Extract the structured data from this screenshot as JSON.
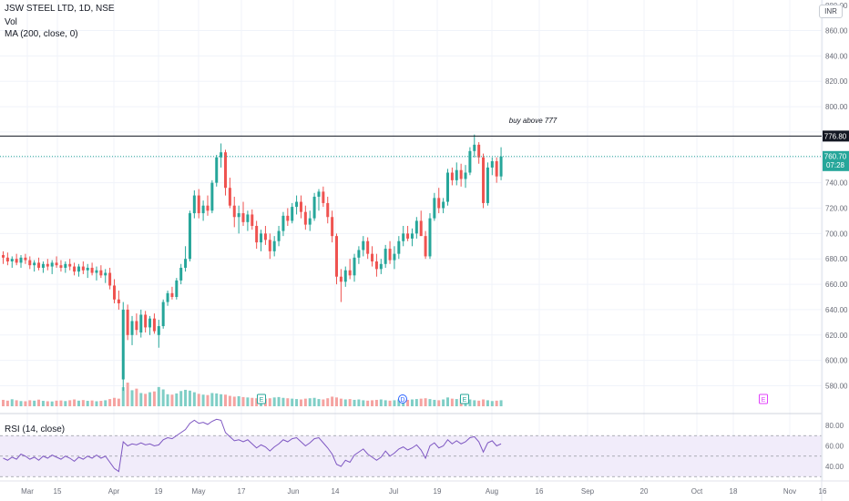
{
  "legend": {
    "title": "JSW STEEL LTD, 1D, NSE",
    "volume": "Vol",
    "ma": "MA (200, close, 0)",
    "rsi": "RSI (14, close)",
    "currency": "INR"
  },
  "annotation": {
    "text": "buy above 777",
    "level": 776.8,
    "level_label": "776.80"
  },
  "last_price": {
    "price": 760.7,
    "price_label": "760.70",
    "countdown": "07:28"
  },
  "colors": {
    "up": "#26a69a",
    "down": "#ef5350",
    "vol_up": "#7fcec6",
    "vol_down": "#f5a3a1",
    "rsi_line": "#7e57c2",
    "rsi_band": "#f1ecfa",
    "level_line": "#131722",
    "axis_text": "#6a6d78"
  },
  "events": [
    {
      "label": "E",
      "date": "May 13",
      "kind": "earnings"
    },
    {
      "label": "D",
      "date": "Jul 4",
      "kind": "dividend"
    },
    {
      "label": "E",
      "date": "Jul 25",
      "kind": "earnings"
    },
    {
      "label": "E",
      "date": "Oct 24",
      "kind": "earnings"
    }
  ],
  "chart_data": {
    "type": "candlestick",
    "price_axis": {
      "range": [
        566,
        880
      ],
      "ticks": [
        580,
        600,
        620,
        640,
        660,
        680,
        700,
        720,
        740,
        760,
        780,
        800,
        820,
        840,
        860
      ],
      "top_partial_label": "880.00"
    },
    "rsi_axis": {
      "range": [
        30,
        90
      ],
      "ticks": [
        40,
        60,
        80
      ],
      "band": [
        30,
        70
      ]
    },
    "x_axis": {
      "labels": [
        "Mar",
        "15",
        "Apr",
        "19",
        "May",
        "17",
        "Jun",
        "14",
        "Jul",
        "19",
        "Aug",
        "16",
        "Sep",
        "20",
        "Oct",
        "18",
        "Nov",
        "16"
      ]
    },
    "candles": [
      {
        "o": 683,
        "h": 686,
        "l": 676,
        "c": 681
      },
      {
        "o": 681,
        "h": 685,
        "l": 675,
        "c": 678
      },
      {
        "o": 678,
        "h": 682,
        "l": 673,
        "c": 680
      },
      {
        "o": 680,
        "h": 684,
        "l": 675,
        "c": 677
      },
      {
        "o": 677,
        "h": 683,
        "l": 673,
        "c": 681
      },
      {
        "o": 681,
        "h": 684,
        "l": 676,
        "c": 679
      },
      {
        "o": 679,
        "h": 682,
        "l": 672,
        "c": 675
      },
      {
        "o": 675,
        "h": 679,
        "l": 670,
        "c": 677
      },
      {
        "o": 677,
        "h": 681,
        "l": 671,
        "c": 673
      },
      {
        "o": 673,
        "h": 678,
        "l": 669,
        "c": 676
      },
      {
        "o": 676,
        "h": 680,
        "l": 671,
        "c": 674
      },
      {
        "o": 674,
        "h": 679,
        "l": 668,
        "c": 677
      },
      {
        "o": 677,
        "h": 682,
        "l": 673,
        "c": 675
      },
      {
        "o": 675,
        "h": 679,
        "l": 670,
        "c": 673
      },
      {
        "o": 673,
        "h": 678,
        "l": 669,
        "c": 676
      },
      {
        "o": 676,
        "h": 680,
        "l": 671,
        "c": 674
      },
      {
        "o": 674,
        "h": 677,
        "l": 667,
        "c": 670
      },
      {
        "o": 670,
        "h": 676,
        "l": 666,
        "c": 674
      },
      {
        "o": 674,
        "h": 678,
        "l": 668,
        "c": 671
      },
      {
        "o": 671,
        "h": 676,
        "l": 665,
        "c": 673
      },
      {
        "o": 673,
        "h": 677,
        "l": 667,
        "c": 669
      },
      {
        "o": 669,
        "h": 674,
        "l": 663,
        "c": 671
      },
      {
        "o": 671,
        "h": 675,
        "l": 665,
        "c": 667
      },
      {
        "o": 667,
        "h": 672,
        "l": 661,
        "c": 669
      },
      {
        "o": 669,
        "h": 673,
        "l": 656,
        "c": 659
      },
      {
        "o": 659,
        "h": 664,
        "l": 645,
        "c": 648
      },
      {
        "o": 648,
        "h": 655,
        "l": 640,
        "c": 645
      },
      {
        "o": 585,
        "h": 646,
        "l": 576,
        "c": 640
      },
      {
        "o": 640,
        "h": 644,
        "l": 616,
        "c": 620
      },
      {
        "o": 620,
        "h": 635,
        "l": 612,
        "c": 631
      },
      {
        "o": 631,
        "h": 637,
        "l": 620,
        "c": 624
      },
      {
        "o": 622,
        "h": 640,
        "l": 618,
        "c": 636
      },
      {
        "o": 636,
        "h": 639,
        "l": 622,
        "c": 626
      },
      {
        "o": 626,
        "h": 635,
        "l": 620,
        "c": 633
      },
      {
        "o": 633,
        "h": 637,
        "l": 621,
        "c": 623
      },
      {
        "o": 620,
        "h": 632,
        "l": 610,
        "c": 627
      },
      {
        "o": 627,
        "h": 648,
        "l": 625,
        "c": 646
      },
      {
        "o": 646,
        "h": 655,
        "l": 643,
        "c": 653
      },
      {
        "o": 653,
        "h": 658,
        "l": 648,
        "c": 650
      },
      {
        "o": 650,
        "h": 665,
        "l": 648,
        "c": 663
      },
      {
        "o": 663,
        "h": 676,
        "l": 660,
        "c": 673
      },
      {
        "o": 673,
        "h": 690,
        "l": 670,
        "c": 680
      },
      {
        "o": 680,
        "h": 718,
        "l": 678,
        "c": 716
      },
      {
        "o": 716,
        "h": 734,
        "l": 712,
        "c": 730
      },
      {
        "o": 730,
        "h": 735,
        "l": 712,
        "c": 716
      },
      {
        "o": 716,
        "h": 726,
        "l": 710,
        "c": 722
      },
      {
        "o": 722,
        "h": 730,
        "l": 714,
        "c": 718
      },
      {
        "o": 718,
        "h": 742,
        "l": 716,
        "c": 740
      },
      {
        "o": 740,
        "h": 762,
        "l": 737,
        "c": 760
      },
      {
        "o": 760,
        "h": 771,
        "l": 752,
        "c": 764
      },
      {
        "o": 764,
        "h": 766,
        "l": 730,
        "c": 736
      },
      {
        "o": 736,
        "h": 744,
        "l": 720,
        "c": 722
      },
      {
        "o": 722,
        "h": 729,
        "l": 705,
        "c": 713
      },
      {
        "o": 713,
        "h": 722,
        "l": 700,
        "c": 716
      },
      {
        "o": 716,
        "h": 725,
        "l": 706,
        "c": 709
      },
      {
        "o": 709,
        "h": 718,
        "l": 702,
        "c": 715
      },
      {
        "o": 715,
        "h": 719,
        "l": 703,
        "c": 706
      },
      {
        "o": 706,
        "h": 710,
        "l": 688,
        "c": 693
      },
      {
        "o": 693,
        "h": 703,
        "l": 686,
        "c": 700
      },
      {
        "o": 700,
        "h": 706,
        "l": 691,
        "c": 695
      },
      {
        "o": 695,
        "h": 700,
        "l": 680,
        "c": 686
      },
      {
        "o": 686,
        "h": 698,
        "l": 682,
        "c": 694
      },
      {
        "o": 694,
        "h": 706,
        "l": 690,
        "c": 702
      },
      {
        "o": 702,
        "h": 717,
        "l": 698,
        "c": 714
      },
      {
        "o": 714,
        "h": 720,
        "l": 706,
        "c": 710
      },
      {
        "o": 710,
        "h": 724,
        "l": 708,
        "c": 721
      },
      {
        "o": 721,
        "h": 730,
        "l": 715,
        "c": 725
      },
      {
        "o": 725,
        "h": 730,
        "l": 712,
        "c": 717
      },
      {
        "o": 717,
        "h": 722,
        "l": 703,
        "c": 707
      },
      {
        "o": 707,
        "h": 718,
        "l": 702,
        "c": 712
      },
      {
        "o": 712,
        "h": 732,
        "l": 710,
        "c": 729
      },
      {
        "o": 729,
        "h": 735,
        "l": 718,
        "c": 733
      },
      {
        "o": 733,
        "h": 737,
        "l": 721,
        "c": 724
      },
      {
        "o": 724,
        "h": 729,
        "l": 708,
        "c": 713
      },
      {
        "o": 713,
        "h": 718,
        "l": 693,
        "c": 698
      },
      {
        "o": 698,
        "h": 700,
        "l": 660,
        "c": 666
      },
      {
        "o": 666,
        "h": 672,
        "l": 646,
        "c": 662
      },
      {
        "o": 662,
        "h": 674,
        "l": 658,
        "c": 671
      },
      {
        "o": 671,
        "h": 680,
        "l": 664,
        "c": 667
      },
      {
        "o": 667,
        "h": 684,
        "l": 662,
        "c": 681
      },
      {
        "o": 681,
        "h": 690,
        "l": 676,
        "c": 687
      },
      {
        "o": 687,
        "h": 698,
        "l": 682,
        "c": 694
      },
      {
        "o": 694,
        "h": 697,
        "l": 680,
        "c": 684
      },
      {
        "o": 684,
        "h": 690,
        "l": 674,
        "c": 678
      },
      {
        "o": 678,
        "h": 684,
        "l": 666,
        "c": 672
      },
      {
        "o": 672,
        "h": 680,
        "l": 668,
        "c": 676
      },
      {
        "o": 676,
        "h": 691,
        "l": 673,
        "c": 688
      },
      {
        "o": 688,
        "h": 694,
        "l": 676,
        "c": 679
      },
      {
        "o": 679,
        "h": 690,
        "l": 672,
        "c": 684
      },
      {
        "o": 684,
        "h": 698,
        "l": 680,
        "c": 694
      },
      {
        "o": 694,
        "h": 706,
        "l": 690,
        "c": 700
      },
      {
        "o": 700,
        "h": 706,
        "l": 694,
        "c": 696
      },
      {
        "o": 696,
        "h": 704,
        "l": 690,
        "c": 700
      },
      {
        "o": 700,
        "h": 713,
        "l": 696,
        "c": 710
      },
      {
        "o": 710,
        "h": 718,
        "l": 700,
        "c": 698
      },
      {
        "o": 698,
        "h": 702,
        "l": 680,
        "c": 682
      },
      {
        "o": 682,
        "h": 716,
        "l": 680,
        "c": 712
      },
      {
        "o": 712,
        "h": 732,
        "l": 710,
        "c": 728
      },
      {
        "o": 728,
        "h": 736,
        "l": 716,
        "c": 720
      },
      {
        "o": 720,
        "h": 728,
        "l": 716,
        "c": 725
      },
      {
        "o": 725,
        "h": 751,
        "l": 722,
        "c": 748
      },
      {
        "o": 748,
        "h": 752,
        "l": 738,
        "c": 742
      },
      {
        "o": 742,
        "h": 756,
        "l": 738,
        "c": 750
      },
      {
        "o": 750,
        "h": 755,
        "l": 737,
        "c": 743
      },
      {
        "o": 743,
        "h": 754,
        "l": 736,
        "c": 748
      },
      {
        "o": 748,
        "h": 768,
        "l": 746,
        "c": 765
      },
      {
        "o": 765,
        "h": 778,
        "l": 760,
        "c": 770
      },
      {
        "o": 770,
        "h": 772,
        "l": 755,
        "c": 760
      },
      {
        "o": 760,
        "h": 763,
        "l": 720,
        "c": 724
      },
      {
        "o": 724,
        "h": 756,
        "l": 722,
        "c": 752
      },
      {
        "o": 752,
        "h": 760,
        "l": 746,
        "c": 757
      },
      {
        "o": 757,
        "h": 760,
        "l": 740,
        "c": 745
      },
      {
        "o": 745,
        "h": 768,
        "l": 742,
        "c": 760.7
      }
    ],
    "volume": [
      32,
      28,
      35,
      30,
      26,
      25,
      30,
      28,
      33,
      27,
      25,
      24,
      28,
      29,
      26,
      30,
      34,
      28,
      31,
      27,
      29,
      25,
      27,
      30,
      36,
      42,
      38,
      95,
      118,
      80,
      88,
      66,
      62,
      70,
      74,
      96,
      84,
      60,
      58,
      64,
      76,
      82,
      78,
      70,
      62,
      58,
      56,
      66,
      64,
      60,
      58,
      52,
      48,
      50,
      46,
      44,
      42,
      40,
      42,
      38,
      40,
      44,
      46,
      42,
      40,
      38,
      36,
      34,
      38,
      40,
      42,
      36,
      34,
      40,
      48,
      44,
      38,
      34,
      36,
      32,
      34,
      30,
      28,
      30,
      32,
      34,
      30,
      28,
      30,
      34,
      36,
      32,
      34,
      36,
      38,
      40,
      36,
      32,
      30,
      34,
      44,
      38,
      36,
      40,
      42,
      34,
      30,
      28,
      34,
      30,
      26,
      28,
      30
    ],
    "rsi": [
      48,
      46,
      49,
      47,
      52,
      50,
      47,
      49,
      46,
      50,
      48,
      51,
      49,
      47,
      50,
      48,
      45,
      49,
      47,
      50,
      48,
      51,
      48,
      50,
      44,
      38,
      35,
      64,
      60,
      62,
      61,
      63,
      61,
      62,
      60,
      61,
      66,
      68,
      67,
      70,
      73,
      76,
      82,
      85,
      82,
      83,
      81,
      84,
      86,
      85,
      73,
      69,
      65,
      66,
      64,
      66,
      62,
      58,
      61,
      59,
      55,
      59,
      62,
      66,
      64,
      67,
      68,
      64,
      60,
      63,
      67,
      68,
      63,
      58,
      52,
      42,
      40,
      46,
      44,
      51,
      54,
      57,
      52,
      49,
      46,
      49,
      55,
      50,
      53,
      57,
      59,
      56,
      58,
      61,
      56,
      48,
      60,
      63,
      58,
      60,
      66,
      62,
      65,
      62,
      64,
      68,
      69,
      64,
      54,
      63,
      65,
      60,
      62
    ]
  }
}
